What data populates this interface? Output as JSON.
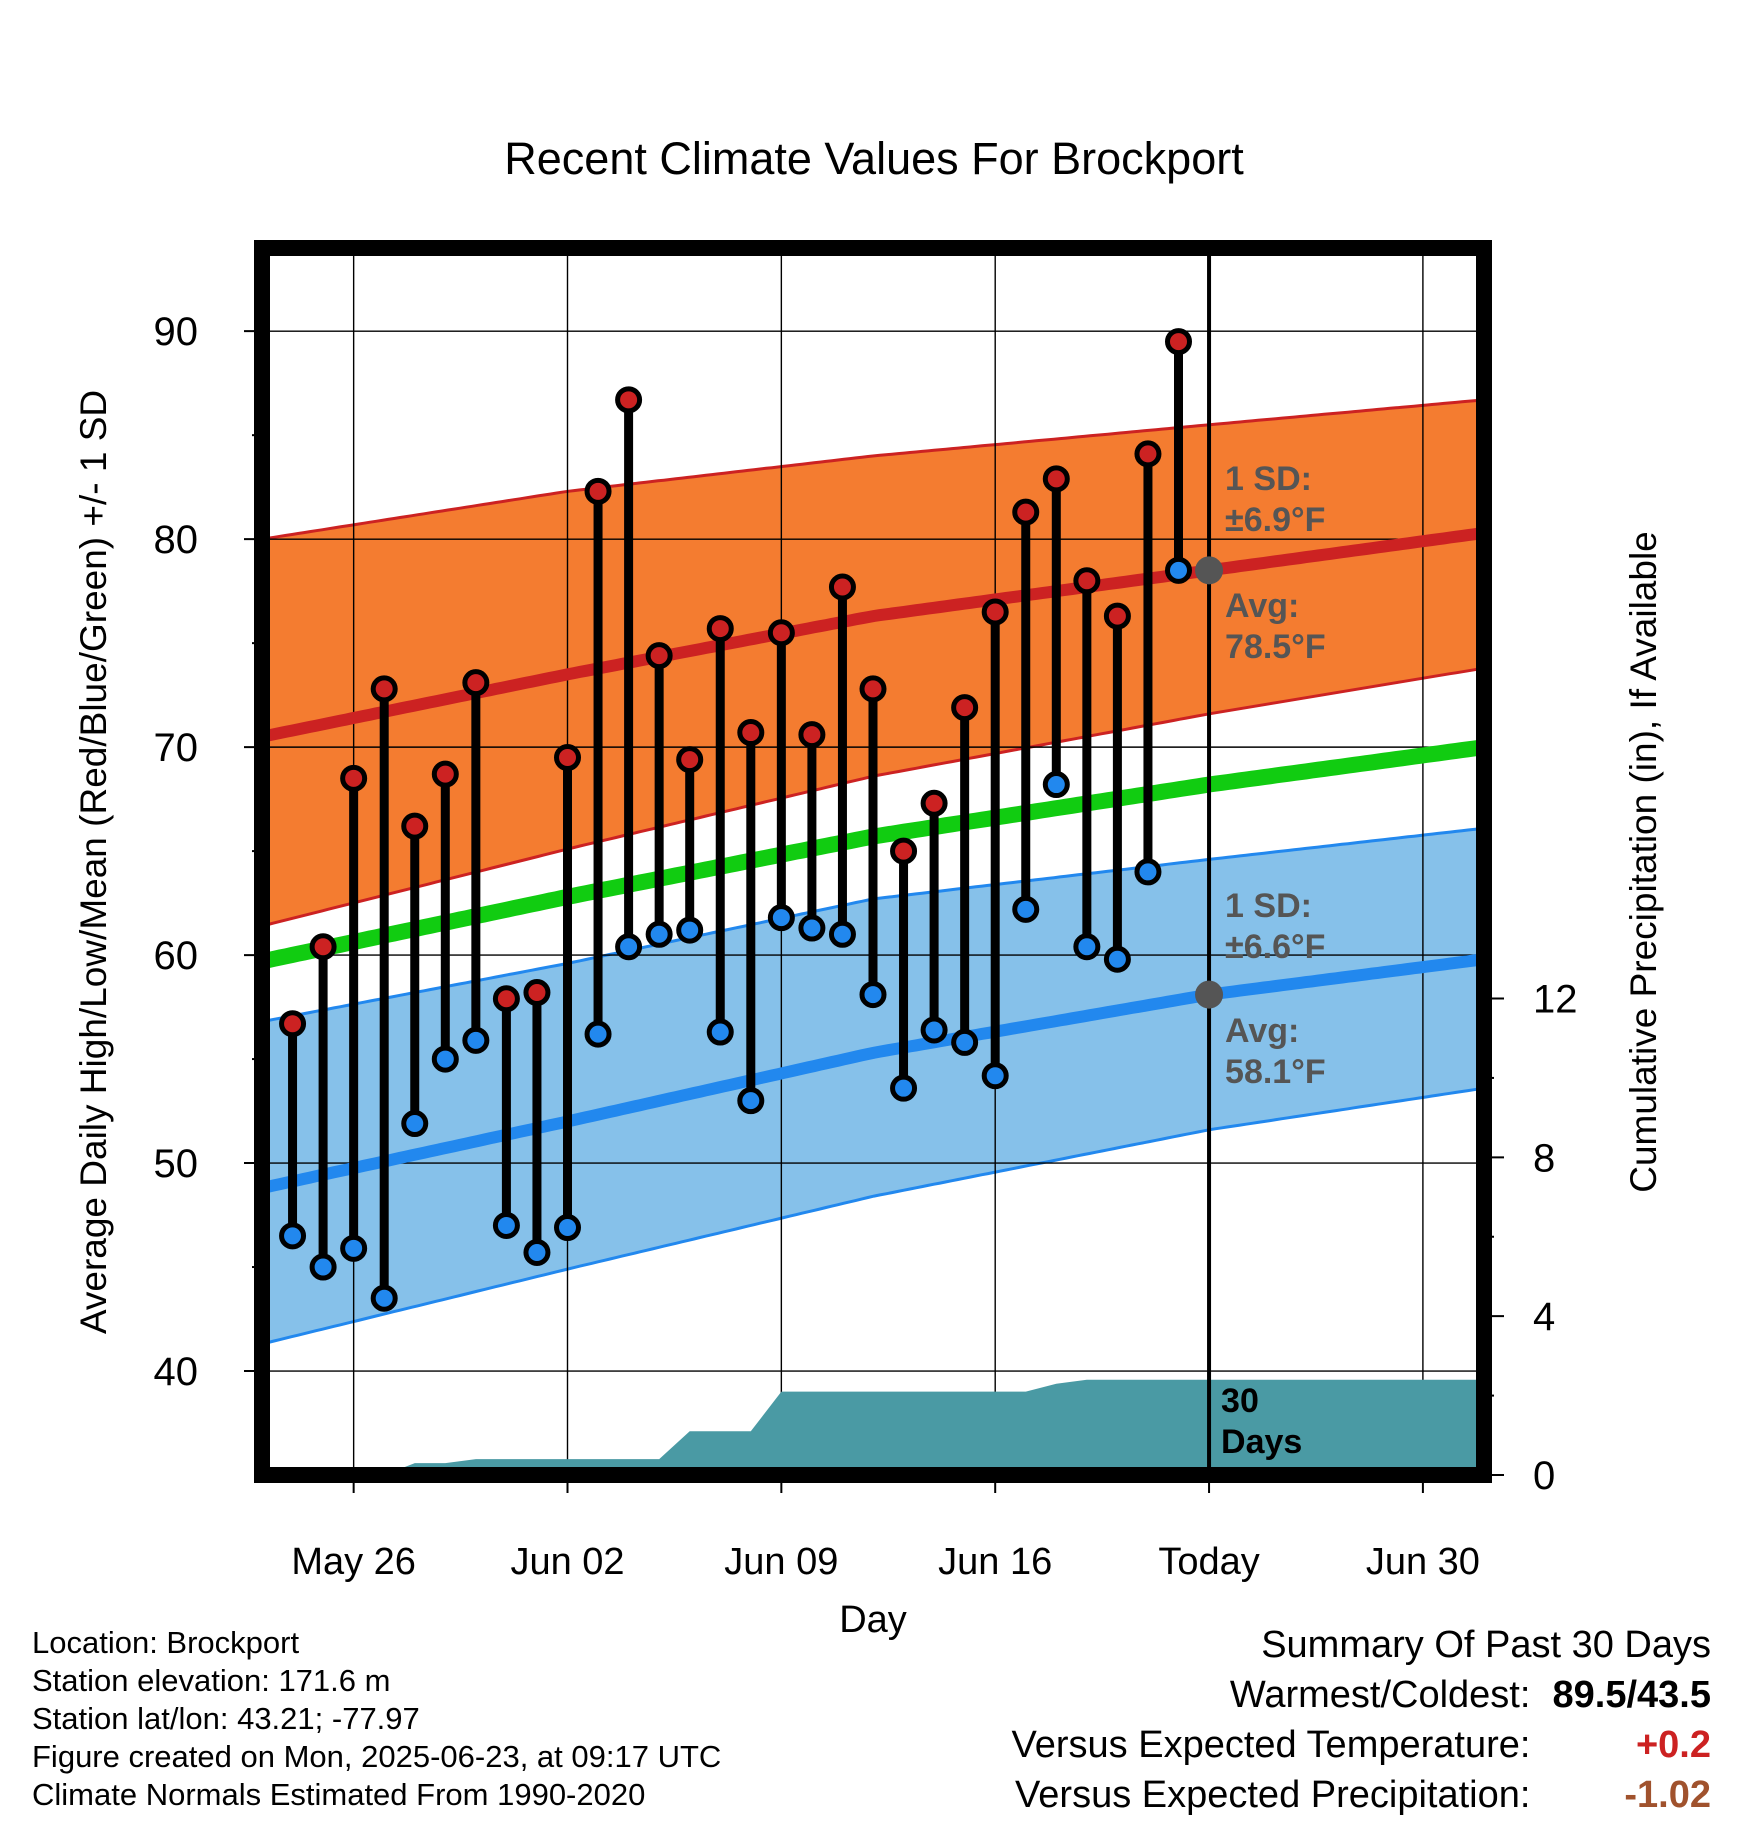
{
  "chart_data": {
    "type": "line",
    "title": "Recent Climate Values For Brockport",
    "xlabel": "Day",
    "ylabel": "Average Daily High/Low/Mean (Red/Blue/Green) +/- 1 SD",
    "ylabel_right": "Cumulative Precipitation (in), If Available",
    "xlim": [
      "2025-05-23",
      "2025-07-02"
    ],
    "ylim": [
      35,
      94
    ],
    "y2lim": [
      0,
      30.9
    ],
    "x_ticks": [
      "2025-05-26",
      "2025-06-02",
      "2025-06-09",
      "2025-06-16",
      "2025-06-23",
      "2025-06-30"
    ],
    "x_tick_labels": [
      "May 26",
      "Jun 02",
      "Jun 09",
      "Jun 16",
      "Today",
      "Jun 30"
    ],
    "y_ticks": [
      40,
      50,
      60,
      70,
      80,
      90
    ],
    "y_tick_labels": [
      "40",
      "50",
      "60",
      "70",
      "80",
      "90"
    ],
    "y2_ticks": [
      0,
      4,
      8,
      12
    ],
    "y2_tick_labels": [
      "0",
      "4",
      "8",
      "12"
    ],
    "grid": true,
    "today": "2025-06-23",
    "normals_dates": [
      "2025-05-23",
      "2025-06-02",
      "2025-06-12",
      "2025-06-23",
      "2025-07-02"
    ],
    "normal_high": [
      70.5,
      73.5,
      76.3,
      78.5,
      80.3
    ],
    "normal_high_upper": [
      80.0,
      82.3,
      84.0,
      85.5,
      86.7
    ],
    "normal_high_lower": [
      61.4,
      65.1,
      68.6,
      71.6,
      73.8
    ],
    "normal_mean": [
      59.7,
      62.8,
      65.7,
      68.2,
      70.0
    ],
    "normal_low": [
      48.8,
      52.0,
      55.3,
      58.1,
      59.8
    ],
    "normal_low_upper": [
      56.8,
      59.6,
      62.7,
      64.6,
      66.1
    ],
    "normal_low_lower": [
      41.3,
      44.9,
      48.4,
      51.6,
      53.6
    ],
    "days": [
      "2025-05-24",
      "2025-05-25",
      "2025-05-26",
      "2025-05-27",
      "2025-05-28",
      "2025-05-29",
      "2025-05-30",
      "2025-05-31",
      "2025-06-01",
      "2025-06-02",
      "2025-06-03",
      "2025-06-04",
      "2025-06-05",
      "2025-06-06",
      "2025-06-07",
      "2025-06-08",
      "2025-06-09",
      "2025-06-10",
      "2025-06-11",
      "2025-06-12",
      "2025-06-13",
      "2025-06-14",
      "2025-06-15",
      "2025-06-16",
      "2025-06-17",
      "2025-06-18",
      "2025-06-19",
      "2025-06-20",
      "2025-06-21",
      "2025-06-22"
    ],
    "highs": [
      56.7,
      60.4,
      68.5,
      72.8,
      66.2,
      68.7,
      73.1,
      57.9,
      58.2,
      69.5,
      82.3,
      86.7,
      74.4,
      69.4,
      75.7,
      70.7,
      75.5,
      70.6,
      77.7,
      72.8,
      65.0,
      67.3,
      71.9,
      76.5,
      81.3,
      82.9,
      78.0,
      76.3,
      84.1,
      89.5
    ],
    "lows": [
      46.5,
      45.0,
      45.9,
      43.5,
      51.9,
      55.0,
      55.9,
      47.0,
      45.7,
      46.9,
      56.2,
      60.4,
      61.0,
      61.2,
      56.3,
      53.0,
      61.8,
      61.3,
      61.0,
      58.1,
      53.6,
      56.4,
      55.8,
      54.2,
      62.2,
      68.2,
      60.4,
      59.8,
      64.0,
      78.5
    ],
    "precip_dates": [
      "2025-05-23",
      "2025-05-25",
      "2025-05-26",
      "2025-05-27",
      "2025-05-28",
      "2025-05-29",
      "2025-05-30",
      "2025-05-31",
      "2025-06-01",
      "2025-06-02",
      "2025-06-03",
      "2025-06-04",
      "2025-06-05",
      "2025-06-06",
      "2025-06-07",
      "2025-06-08",
      "2025-06-09",
      "2025-06-10",
      "2025-06-11",
      "2025-06-12",
      "2025-06-13",
      "2025-06-14",
      "2025-06-15",
      "2025-06-16",
      "2025-06-17",
      "2025-06-18",
      "2025-06-19",
      "2025-06-20",
      "2025-06-21",
      "2025-06-22",
      "2025-06-23",
      "2025-07-02"
    ],
    "cumulative_precip": [
      0,
      0,
      0,
      0,
      0.3,
      0.3,
      0.4,
      0.4,
      0.4,
      0.4,
      0.4,
      0.4,
      0.4,
      1.1,
      1.1,
      1.1,
      2.1,
      2.1,
      2.1,
      2.1,
      2.1,
      2.1,
      2.1,
      2.1,
      2.1,
      2.3,
      2.4,
      2.4,
      2.4,
      2.4,
      2.4,
      2.4
    ],
    "annotations": {
      "high_sd_label": "1 SD:",
      "high_sd_value": "±6.9°F",
      "high_avg_label": "Avg:",
      "high_avg_value": "78.5°F",
      "low_sd_label": "1 SD:",
      "low_sd_value": "±6.6°F",
      "low_avg_label": "Avg:",
      "low_avg_value": "58.1°F",
      "period_label_1": "30",
      "period_label_2": "Days"
    },
    "colors": {
      "high": "#cc2222",
      "low": "#2288ee",
      "mean": "#11cc11",
      "high_band": "#f47c30",
      "low_band": "#86c1ea",
      "precip": "#4a9aa4",
      "annotation": "#555555"
    }
  },
  "info": {
    "location": "Location: Brockport",
    "elevation": "Station elevation: 171.6 m",
    "latlon": "Station lat/lon: 43.21; -77.97",
    "created": "Figure created on Mon, 2025-06-23, at 09:17 UTC",
    "normals": "Climate Normals Estimated From 1990-2020"
  },
  "summary": {
    "title": "Summary Of Past 30 Days",
    "warmest_label": "Warmest/Coldest:",
    "warmest_value": "89.5/43.5",
    "temp_label": "Versus Expected Temperature:",
    "temp_value": "+0.2",
    "temp_color": "#cc2222",
    "precip_label": "Versus Expected Precipitation:",
    "precip_value": "-1.02",
    "precip_color": "#a0522d"
  }
}
